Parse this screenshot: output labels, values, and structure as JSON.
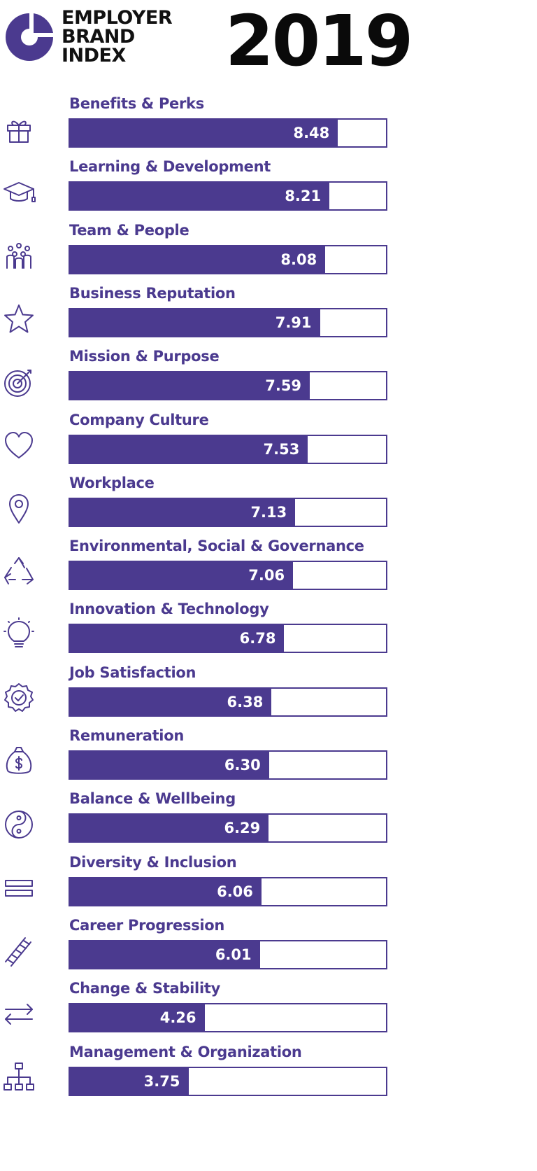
{
  "header": {
    "logo_lines": [
      "EMPLOYER",
      "BRAND",
      "INDEX"
    ],
    "year": "2019"
  },
  "colors": {
    "bar": "#4b3a8f",
    "text": "#4b3a8f",
    "value_text": "#ffffff"
  },
  "chart_data": {
    "type": "bar",
    "orientation": "horizontal",
    "xlim": [
      0,
      10
    ],
    "categories": [
      "Benefits & Perks",
      "Learning & Development",
      "Team & People",
      "Business Reputation",
      "Mission & Purpose",
      "Company Culture",
      "Workplace",
      "Environmental, Social & Governance",
      "Innovation & Technology",
      "Job Satisfaction",
      "Remuneration",
      "Balance & Wellbeing",
      "Diversity & Inclusion",
      "Career Progression",
      "Change & Stability",
      "Management & Organization"
    ],
    "values": [
      8.48,
      8.21,
      8.08,
      7.91,
      7.59,
      7.53,
      7.13,
      7.06,
      6.78,
      6.38,
      6.3,
      6.29,
      6.06,
      6.01,
      4.26,
      3.75
    ],
    "value_labels": [
      "8.48",
      "8.21",
      "8.08",
      "7.91",
      "7.59",
      "7.53",
      "7.13",
      "7.06",
      "6.78",
      "6.38",
      "6.30",
      "6.29",
      "6.06",
      "6.01",
      "4.26",
      "3.75"
    ],
    "icons": [
      "gift-icon",
      "graduation-cap-icon",
      "team-icon",
      "star-icon",
      "target-icon",
      "heart-icon",
      "location-pin-icon",
      "recycle-icon",
      "lightbulb-icon",
      "badge-check-icon",
      "money-bag-icon",
      "yin-yang-icon",
      "equals-icon",
      "ladder-icon",
      "exchange-arrows-icon",
      "org-chart-icon"
    ]
  }
}
